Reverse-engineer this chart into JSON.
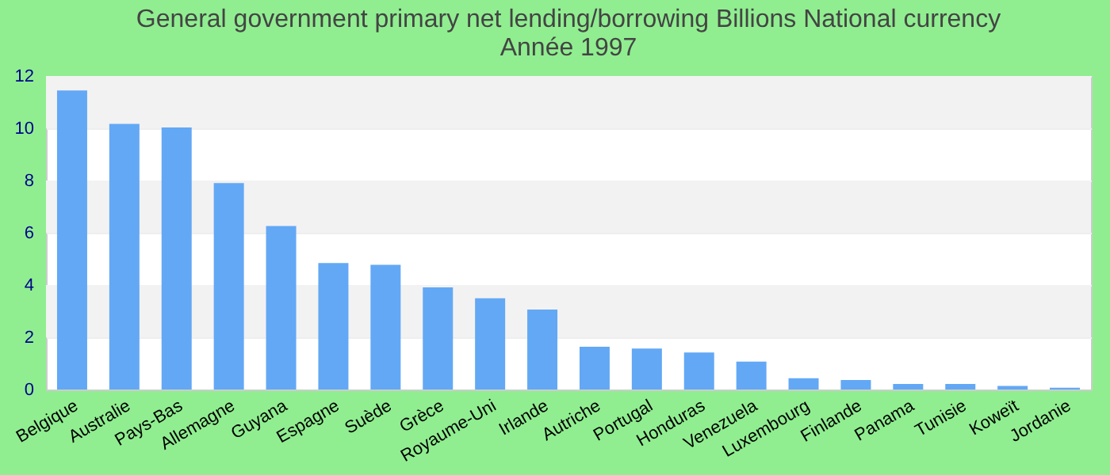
{
  "chart_data": {
    "type": "bar",
    "title": [
      "General government primary net lending/borrowing Billions National currency",
      "Année 1997"
    ],
    "categories": [
      "Belgique",
      "Australie",
      "Pays-Bas",
      "Allemagne",
      "Guyana",
      "Espagne",
      "Suède",
      "Grèce",
      "Royaume-Uni",
      "Irlande",
      "Autriche",
      "Portugal",
      "Honduras",
      "Venezuela",
      "Luxembourg",
      "Finlande",
      "Panama",
      "Tunisie",
      "Koweït",
      "Jordanie"
    ],
    "values": [
      11.45,
      10.17,
      10.03,
      7.9,
      6.26,
      4.84,
      4.77,
      3.91,
      3.49,
      3.06,
      1.64,
      1.57,
      1.42,
      1.07,
      0.43,
      0.36,
      0.21,
      0.21,
      0.14,
      0.07
    ],
    "color": "#63a8f5",
    "ylim": [
      0,
      12
    ],
    "yticks": [
      0,
      2,
      4,
      6,
      8,
      10,
      12
    ],
    "grid": true
  }
}
